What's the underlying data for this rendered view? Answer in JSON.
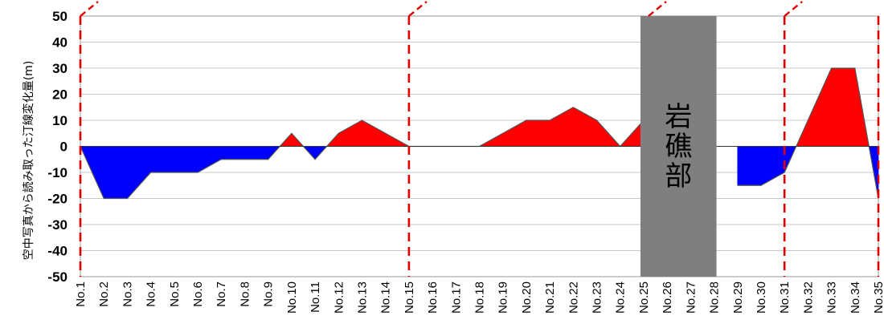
{
  "chart_data": {
    "type": "area",
    "ylabel": "空中写真から読み取った汀線変化量(m)",
    "xlabel": "",
    "ylim": [
      -50,
      50
    ],
    "yticks": [
      50,
      40,
      30,
      20,
      10,
      0,
      -10,
      -20,
      -30,
      -40,
      -50
    ],
    "grid": "horizontal",
    "categories": [
      "No.1",
      "No.2",
      "No.3",
      "No.4",
      "No.5",
      "No.6",
      "No.7",
      "No.8",
      "No.9",
      "No.10",
      "No.11",
      "No.12",
      "No.13",
      "No.14",
      "No.15",
      "No.16",
      "No.17",
      "No.18",
      "No.19",
      "No.20",
      "No.21",
      "No.22",
      "No.23",
      "No.24",
      "No.25",
      "No.26",
      "No.27",
      "No.28",
      "No.29",
      "No.30",
      "No.31",
      "No.32",
      "No.33",
      "No.34",
      "No.35"
    ],
    "values": [
      0,
      -20,
      -20,
      -10,
      -10,
      -10,
      -5,
      -5,
      -5,
      5,
      -5,
      5,
      10,
      5,
      0,
      0,
      0,
      0,
      5,
      10,
      10,
      15,
      10,
      0,
      10,
      null,
      null,
      null,
      -15,
      -15,
      -10,
      10,
      30,
      30,
      -20
    ],
    "positive_color": "#ff0000",
    "negative_color": "#0000ff",
    "boundary_lines_at": [
      "No.1",
      "No.15",
      "No.31",
      "No.35"
    ],
    "boundary_color": "#e00000",
    "rock_section": {
      "label": "岩礁部",
      "from": "No.25",
      "to": "No.28",
      "color": "#7f7f7f"
    }
  }
}
